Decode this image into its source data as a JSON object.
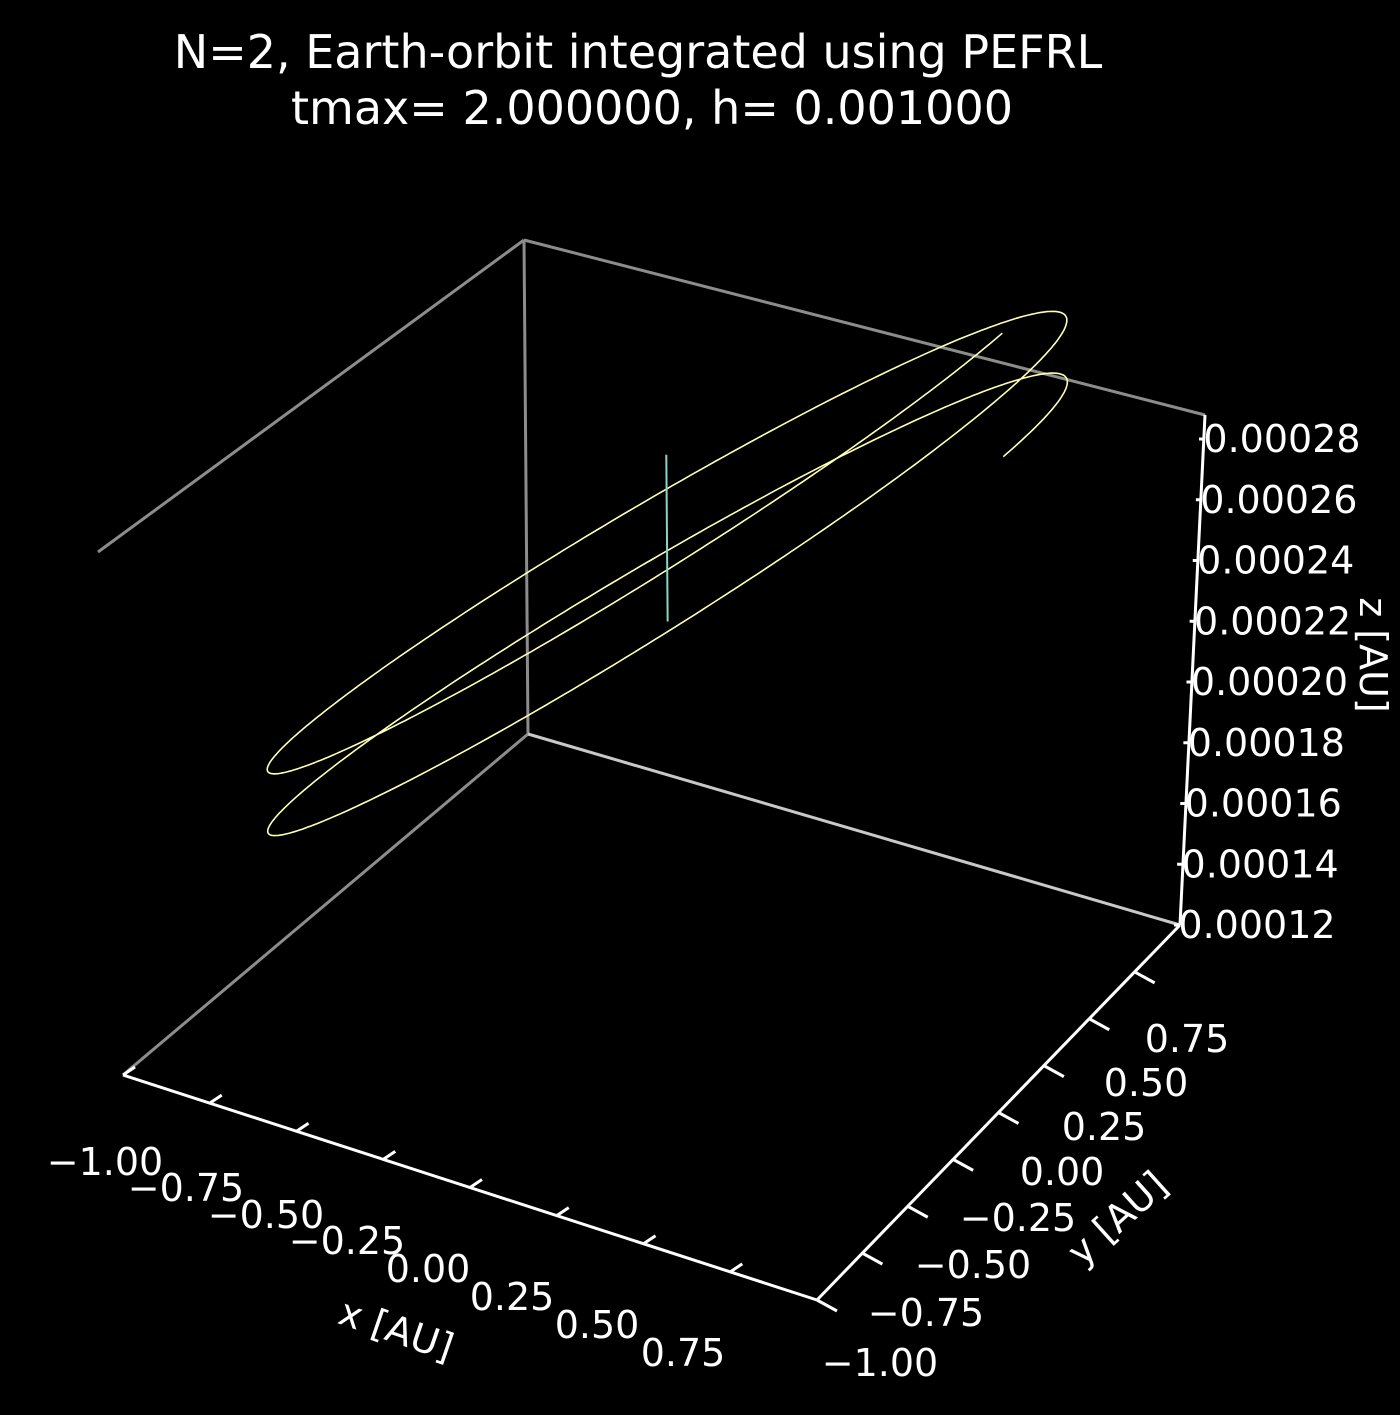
{
  "colors": {
    "background": "#000000",
    "text": "#ffffff",
    "back_pane_edges": "#8c8c8c",
    "front_axis_lines": "#ffffff",
    "orbit": "#ffffb3",
    "sun_track": "#8dd3c7"
  },
  "chart_data": {
    "type": "line3d",
    "title": [
      "N=2, Earth-orbit integrated using PEFRL",
      "tmax= 2.000000, h= 0.001000"
    ],
    "xlabel": "x [AU]",
    "ylabel": "y [AU]",
    "zlabel": "z [AU]",
    "xlim": [
      -1.0,
      1.0
    ],
    "ylim": [
      -1.0,
      1.0
    ],
    "zlim": [
      0.00012,
      0.00028
    ],
    "xticks": [
      "−1.00",
      "−0.75",
      "−0.50",
      "−0.25",
      "0.00",
      "0.25",
      "0.50",
      "0.75"
    ],
    "yticks": [
      "−1.00",
      "−0.75",
      "−0.50",
      "−0.25",
      "0.00",
      "0.25",
      "0.50",
      "0.75"
    ],
    "zticks": [
      "0.00012",
      "0.00014",
      "0.00016",
      "0.00018",
      "0.00020",
      "0.00022",
      "0.00024",
      "0.00026",
      "0.00028"
    ],
    "grid": false,
    "series": [
      {
        "description": "Earth orbit: two loops (2 years), vertical drift",
        "revolutions": 2,
        "radius": 1.0,
        "z_start": 0.000152,
        "z_end": 0.000192
      },
      {
        "description": "Sun track: short vertical segment at origin",
        "x": [
          0,
          0
        ],
        "y": [
          0,
          0
        ],
        "z": [
          0.000154,
          0.000208
        ]
      }
    ]
  }
}
